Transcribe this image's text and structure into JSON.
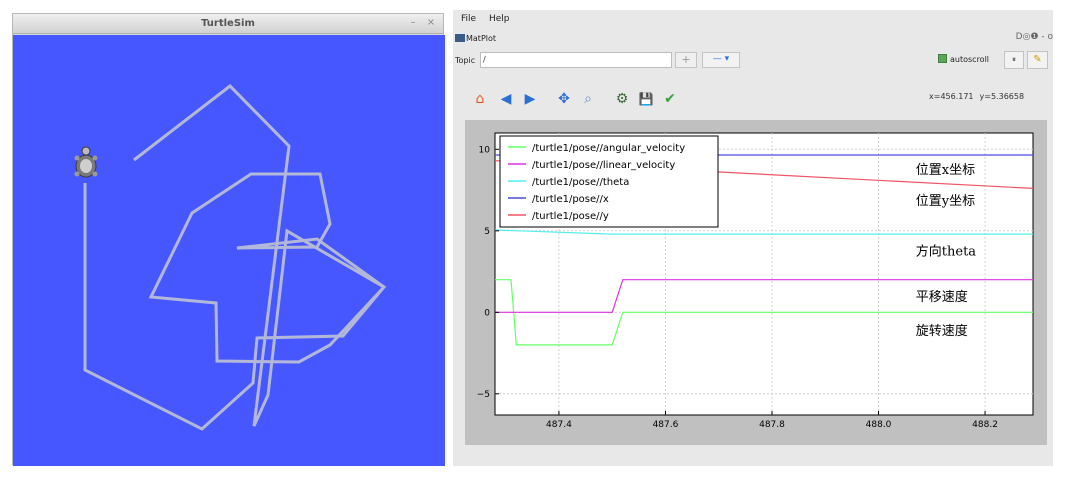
{
  "turtlesim": {
    "title": "TurtleSim",
    "minimize_glyph": "–",
    "close_glyph": "×",
    "background": "#4757ff",
    "trail_color": "#b3b8d9",
    "turtle_icon": "turtle-icon"
  },
  "matplot": {
    "menu": {
      "file": "File",
      "help": "Help"
    },
    "plugin_title": "MatPlot",
    "plugin_controls": "D◎❶  - o",
    "topic_label": "Topic",
    "topic_value": "/",
    "add_glyph": "+",
    "remove_glyph": "— ▾",
    "autoscroll_label": "autoscroll",
    "pause_glyph": "⏸",
    "clear_glyph": "✎",
    "toolbar_icons": [
      "home-icon",
      "back-icon",
      "forward-icon",
      "pan-icon",
      "zoom-icon",
      "configure-icon",
      "save-icon",
      "edit-check-icon"
    ],
    "toolbar_glyphs": [
      "⌂",
      "◀",
      "▶",
      "✥",
      "⌕",
      "⚙",
      "💾",
      "✔"
    ],
    "coord": {
      "x": "x=456.171",
      "y": "y=5.36658"
    }
  },
  "chart_data": {
    "type": "line",
    "title": "",
    "xlabel": "",
    "ylabel": "",
    "xlim": [
      487.28,
      488.29
    ],
    "ylim": [
      -6.3,
      11
    ],
    "xticks": [
      487.4,
      487.6,
      487.8,
      488.0,
      488.2
    ],
    "xtick_labels": [
      "487.4",
      "487.6",
      "487.8",
      "488.0",
      "488.2"
    ],
    "yticks": [
      -5,
      0,
      5,
      10
    ],
    "ytick_labels": [
      "−5",
      "0",
      "5",
      "10"
    ],
    "grid": true,
    "legend_position": "top-left",
    "series": [
      {
        "name": "/turtle1/pose//angular_velocity",
        "color": "#66ff66",
        "x": [
          487.28,
          487.31,
          487.32,
          487.5,
          487.52,
          488.29
        ],
        "y": [
          2,
          2,
          -2,
          -2,
          0,
          0
        ]
      },
      {
        "name": "/turtle1/pose//linear_velocity",
        "color": "#e033e0",
        "x": [
          487.28,
          487.5,
          487.52,
          488.29
        ],
        "y": [
          0,
          0,
          2,
          2
        ]
      },
      {
        "name": "/turtle1/pose//theta",
        "color": "#55eeee",
        "x": [
          487.28,
          487.5,
          488.29
        ],
        "y": [
          5.05,
          4.8,
          4.8
        ]
      },
      {
        "name": "/turtle1/pose//x",
        "color": "#4a4ae0",
        "x": [
          487.28,
          488.29
        ],
        "y": [
          9.65,
          9.65
        ]
      },
      {
        "name": "/turtle1/pose//y",
        "color": "#ee5566",
        "x": [
          487.28,
          487.5,
          488.29
        ],
        "y": [
          9.3,
          8.95,
          7.6
        ]
      }
    ],
    "annotations": [
      {
        "text": "位置x坐标",
        "x": 488.07,
        "y": 8.8
      },
      {
        "text": "位置y坐标",
        "x": 488.07,
        "y": 6.9
      },
      {
        "text": "方向theta",
        "x": 488.07,
        "y": 3.8
      },
      {
        "text": "平移速度",
        "x": 488.07,
        "y": 1.0
      },
      {
        "text": "旋转速度",
        "x": 488.07,
        "y": -1.1
      }
    ]
  }
}
